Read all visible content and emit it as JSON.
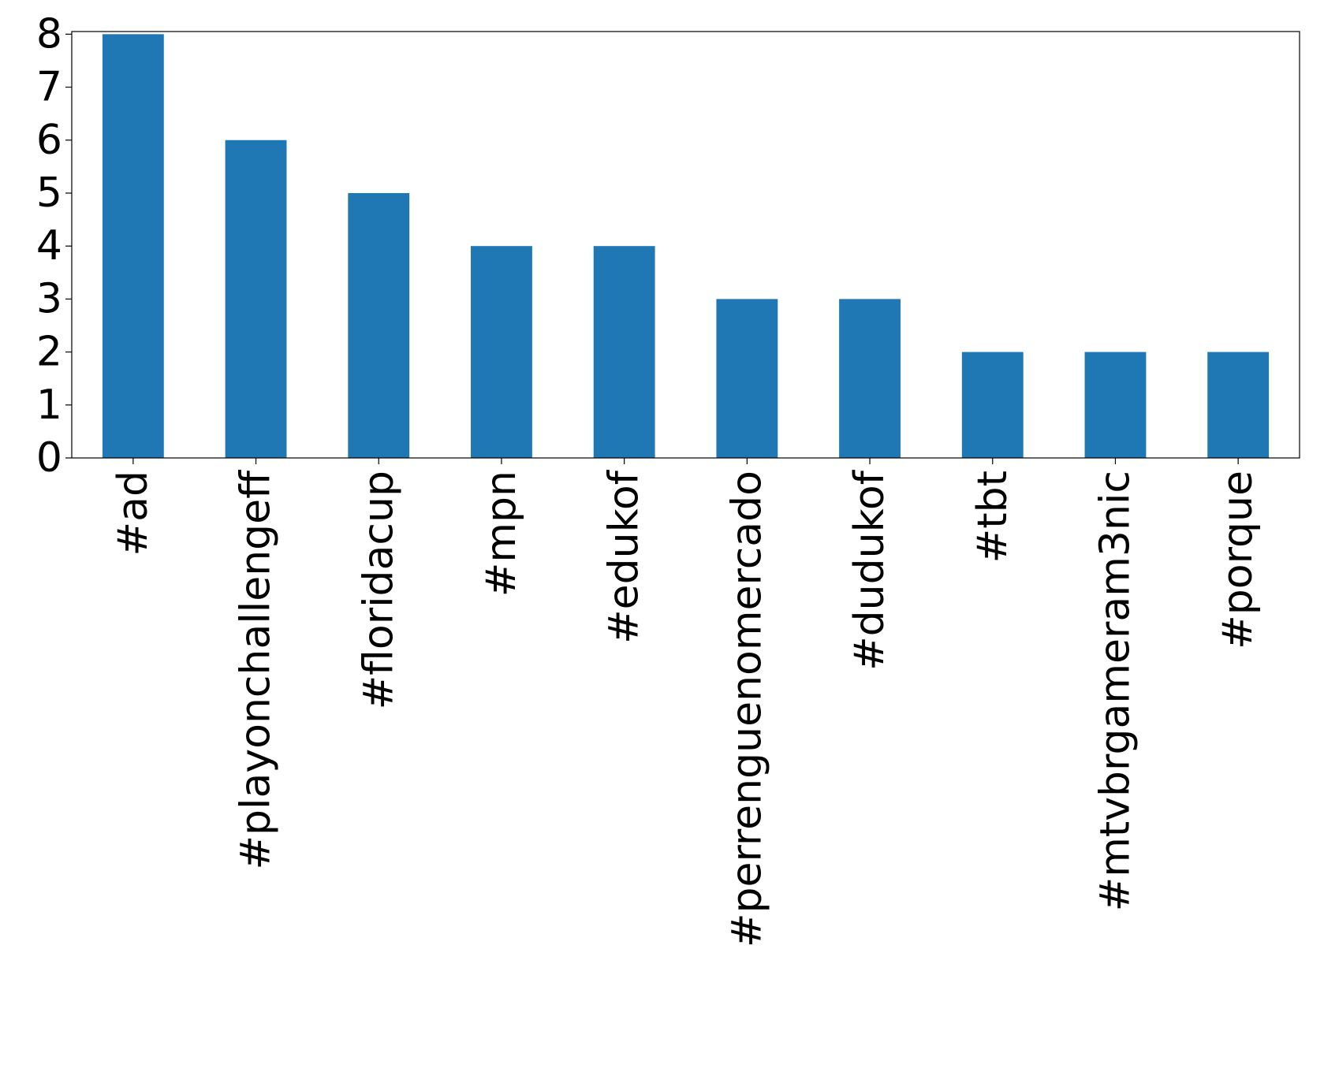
{
  "chart_data": {
    "type": "bar",
    "categories": [
      "#ad",
      "#playonchallengeff",
      "#floridacup",
      "#mpn",
      "#edukof",
      "#perrenguenomercado",
      "#dudukof",
      "#tbt",
      "#mtvbrgameram3nic",
      "#porque"
    ],
    "values": [
      8,
      6,
      5,
      4,
      4,
      3,
      3,
      2,
      2,
      2
    ],
    "color": "#1f77b4",
    "ylim": [
      0,
      8.05
    ],
    "yticks": [
      0,
      1,
      2,
      3,
      4,
      5,
      6,
      7,
      8
    ],
    "grid": false
  }
}
